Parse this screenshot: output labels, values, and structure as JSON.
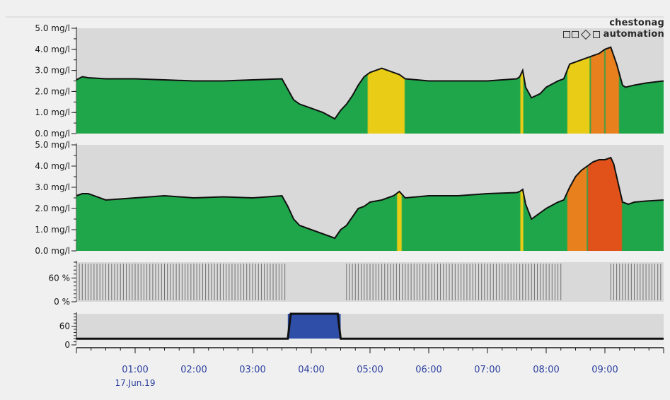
{
  "brand": {
    "line1": "chestonag",
    "line2": "automation"
  },
  "colors": {
    "background": "#f0f0f0",
    "plot_background": "#d9d9d9",
    "fill_green": "#1fa64a",
    "fill_yellow": "#e8cc16",
    "fill_orange": "#e8801e",
    "fill_red": "#e0521a",
    "bar_fill": "#2e4ea8",
    "axis_text": "#1a1a1a",
    "time_text": "#2b3f9e"
  },
  "chart_data": [
    {
      "type": "area",
      "y_ticks": [
        "0.0 mg/l",
        "1.0 mg/l",
        "2.0 mg/l",
        "3.0 mg/l",
        "4.0 mg/l",
        "5.0 mg/l"
      ],
      "ylim": [
        0,
        5
      ],
      "xlim": [
        0,
        10
      ],
      "x": [
        0.0,
        0.1,
        0.2,
        0.5,
        1.0,
        1.5,
        2.0,
        2.5,
        3.0,
        3.5,
        3.6,
        3.7,
        3.8,
        4.0,
        4.2,
        4.4,
        4.5,
        4.6,
        4.7,
        4.8,
        4.9,
        5.0,
        5.1,
        5.2,
        5.3,
        5.4,
        5.5,
        5.6,
        6.0,
        6.5,
        7.0,
        7.5,
        7.55,
        7.6,
        7.65,
        7.75,
        7.9,
        8.0,
        8.2,
        8.3,
        8.4,
        8.5,
        8.6,
        8.7,
        8.8,
        8.9,
        9.0,
        9.1,
        9.15,
        9.2,
        9.25,
        9.3,
        9.35,
        9.5,
        9.7,
        10.0
      ],
      "values": [
        2.55,
        2.7,
        2.65,
        2.6,
        2.6,
        2.55,
        2.5,
        2.5,
        2.55,
        2.6,
        2.1,
        1.6,
        1.4,
        1.2,
        1.0,
        0.7,
        1.1,
        1.4,
        1.8,
        2.3,
        2.7,
        2.9,
        3.0,
        3.1,
        3.0,
        2.9,
        2.8,
        2.6,
        2.5,
        2.5,
        2.5,
        2.6,
        2.7,
        3.0,
        2.2,
        1.7,
        1.9,
        2.2,
        2.5,
        2.6,
        3.3,
        3.4,
        3.5,
        3.6,
        3.7,
        3.8,
        4.0,
        4.1,
        3.7,
        3.3,
        2.8,
        2.3,
        2.2,
        2.3,
        2.4,
        2.5
      ],
      "color_zones": [
        {
          "from": 4.95,
          "to": 5.6,
          "color": "yellow"
        },
        {
          "from": 7.55,
          "to": 7.62,
          "color": "yellow"
        },
        {
          "from": 8.35,
          "to": 8.75,
          "color": "yellow"
        },
        {
          "from": 8.75,
          "to": 9.0,
          "color": "orange"
        },
        {
          "from": 9.0,
          "to": 9.25,
          "color": "orange"
        }
      ]
    },
    {
      "type": "area",
      "y_ticks": [
        "0.0 mg/l",
        "1.0 mg/l",
        "2.0 mg/l",
        "3.0 mg/l",
        "4.0 mg/l",
        "5.0 mg/l"
      ],
      "ylim": [
        0,
        5
      ],
      "xlim": [
        0,
        10
      ],
      "x": [
        0.0,
        0.1,
        0.2,
        0.5,
        1.0,
        1.5,
        2.0,
        2.5,
        3.0,
        3.5,
        3.6,
        3.7,
        3.8,
        4.0,
        4.2,
        4.4,
        4.5,
        4.6,
        4.7,
        4.8,
        4.9,
        5.0,
        5.2,
        5.4,
        5.5,
        5.6,
        6.0,
        6.5,
        7.0,
        7.5,
        7.55,
        7.6,
        7.65,
        7.75,
        7.9,
        8.0,
        8.2,
        8.3,
        8.4,
        8.5,
        8.6,
        8.7,
        8.8,
        8.9,
        9.0,
        9.1,
        9.15,
        9.2,
        9.25,
        9.3,
        9.4,
        9.5,
        9.7,
        10.0
      ],
      "values": [
        2.6,
        2.7,
        2.7,
        2.4,
        2.5,
        2.6,
        2.5,
        2.55,
        2.5,
        2.6,
        2.1,
        1.5,
        1.2,
        1.0,
        0.8,
        0.6,
        1.0,
        1.2,
        1.6,
        2.0,
        2.1,
        2.3,
        2.4,
        2.6,
        2.8,
        2.5,
        2.6,
        2.6,
        2.7,
        2.75,
        2.8,
        2.9,
        2.2,
        1.5,
        1.8,
        2.0,
        2.3,
        2.4,
        3.0,
        3.5,
        3.8,
        4.0,
        4.2,
        4.3,
        4.3,
        4.4,
        4.1,
        3.5,
        2.9,
        2.3,
        2.2,
        2.3,
        2.35,
        2.4
      ],
      "color_zones": [
        {
          "from": 5.45,
          "to": 5.55,
          "color": "yellow"
        },
        {
          "from": 7.55,
          "to": 7.62,
          "color": "yellow"
        },
        {
          "from": 8.35,
          "to": 8.7,
          "color": "orange"
        },
        {
          "from": 8.7,
          "to": 9.3,
          "color": "red"
        }
      ]
    },
    {
      "type": "bar",
      "y_ticks": [
        "0 %",
        "60 %"
      ],
      "ylim": [
        0,
        100
      ],
      "xlim": [
        0,
        10
      ],
      "stripe_segments": [
        [
          0.0,
          3.55
        ],
        [
          4.6,
          8.25
        ],
        [
          9.1,
          10.0
        ]
      ],
      "stripe_period": 0.05
    },
    {
      "type": "area",
      "y_ticks": [
        "0",
        "60"
      ],
      "ylim": [
        0,
        100
      ],
      "xlim": [
        0,
        10
      ],
      "baseline_value": 20,
      "x": [
        0.0,
        3.55,
        3.6,
        3.65,
        4.45,
        4.5,
        4.55,
        10.0
      ],
      "values": [
        20,
        20,
        20,
        100,
        100,
        20,
        20,
        20
      ],
      "fill_from": 3.6,
      "fill_to": 4.5
    }
  ],
  "time_axis": {
    "ticks": [
      {
        "x": 1,
        "label": "01:00"
      },
      {
        "x": 2,
        "label": "02:00"
      },
      {
        "x": 3,
        "label": "03:00"
      },
      {
        "x": 4,
        "label": "04:00"
      },
      {
        "x": 5,
        "label": "05:00"
      },
      {
        "x": 6,
        "label": "06:00"
      },
      {
        "x": 7,
        "label": "07:00"
      },
      {
        "x": 8,
        "label": "08:00"
      },
      {
        "x": 9,
        "label": "09:00"
      }
    ],
    "date_label": "17.Jun.19"
  }
}
